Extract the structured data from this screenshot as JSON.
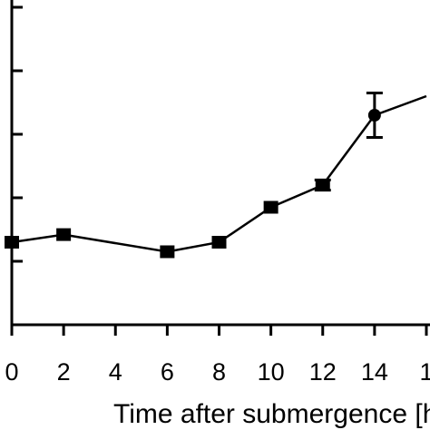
{
  "chart_data": {
    "type": "line",
    "xlabel": "Time after submergence [h",
    "ylabel": "",
    "x_ticks": [
      "0",
      "2",
      "4",
      "6",
      "8",
      "10",
      "12",
      "14",
      "1"
    ],
    "xlim": [
      0,
      16
    ],
    "ylim": [
      0,
      5
    ],
    "grid": false,
    "series": [
      {
        "x": [
          0,
          2,
          6,
          8,
          10,
          12,
          14,
          16
        ],
        "y": [
          1.3,
          1.42,
          1.15,
          1.3,
          1.85,
          2.2,
          3.3,
          3.6
        ],
        "error": [
          0,
          0,
          0,
          0,
          0,
          0.08,
          0.35,
          0
        ],
        "marker": "square",
        "line_color": "#000000"
      }
    ]
  }
}
